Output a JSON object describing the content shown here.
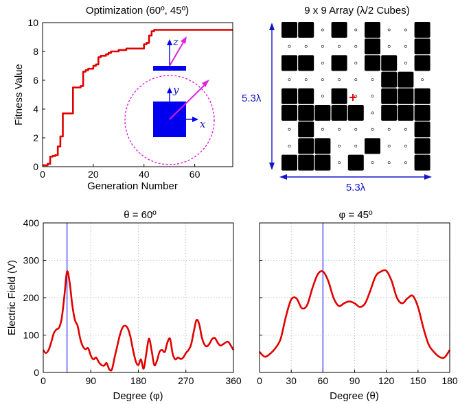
{
  "chart_data": [
    {
      "type": "line",
      "title": "Optimization (60º, 45º)",
      "xlabel": "Generation Number",
      "ylabel": "Fitness Value",
      "xlim": [
        0,
        75
      ],
      "ylim": [
        0,
        10
      ],
      "xticks": [
        "0",
        "20",
        "40",
        "60"
      ],
      "yticks": [
        "0",
        "2",
        "4",
        "6",
        "8",
        "10"
      ],
      "grid": false,
      "step_x": [
        0,
        2,
        3,
        4,
        5,
        6,
        7,
        8,
        10,
        12,
        13,
        15,
        16,
        17,
        18,
        20,
        21,
        22,
        23,
        25,
        26,
        27,
        29,
        30,
        33,
        34,
        40,
        41,
        42,
        43,
        44,
        75
      ],
      "step_y": [
        0.1,
        0.2,
        0.7,
        0.75,
        0.8,
        1.4,
        2.1,
        3.7,
        3.7,
        5.5,
        5.5,
        5.6,
        6.6,
        6.7,
        6.8,
        7.0,
        7.1,
        7.6,
        7.7,
        7.8,
        7.9,
        8.0,
        8.0,
        8.1,
        8.2,
        8.2,
        8.5,
        8.6,
        9.1,
        9.4,
        9.5,
        9.5
      ],
      "inset": {
        "axes": [
          "x",
          "y",
          "z"
        ]
      }
    },
    {
      "type": "heatmap",
      "title": "9 x 9 Array (λ/2 Cubes)",
      "width_label": "5.3λ",
      "height_label": "5.3λ",
      "grid": [
        [
          1,
          1,
          0,
          1,
          0,
          1,
          0,
          0,
          1
        ],
        [
          0,
          0,
          0,
          0,
          0,
          1,
          0,
          0,
          1
        ],
        [
          1,
          1,
          0,
          1,
          0,
          1,
          1,
          0,
          1
        ],
        [
          0,
          0,
          0,
          0,
          0,
          0,
          1,
          1,
          0
        ],
        [
          1,
          1,
          0,
          1,
          0,
          0,
          1,
          1,
          1
        ],
        [
          1,
          1,
          1,
          1,
          1,
          0,
          1,
          1,
          1
        ],
        [
          0,
          1,
          0,
          0,
          0,
          0,
          0,
          0,
          1
        ],
        [
          0,
          1,
          1,
          0,
          0,
          1,
          0,
          0,
          1
        ],
        [
          1,
          1,
          1,
          0,
          1,
          0,
          0,
          0,
          1
        ]
      ]
    },
    {
      "type": "line",
      "title": "θ = 60º",
      "xlabel": "Degree (φ)",
      "ylabel": "Electric Field (V)",
      "xlim": [
        0,
        360
      ],
      "ylim": [
        0,
        400
      ],
      "xticks": [
        "0",
        "90",
        "180",
        "270",
        "360"
      ],
      "yticks": [
        "0",
        "100",
        "200",
        "300",
        "400"
      ],
      "grid": true,
      "marker_x": 45,
      "x": [
        0,
        5,
        10,
        15,
        20,
        25,
        30,
        35,
        40,
        45,
        50,
        55,
        60,
        65,
        70,
        75,
        80,
        85,
        90,
        95,
        100,
        105,
        110,
        115,
        120,
        125,
        130,
        135,
        140,
        145,
        150,
        155,
        160,
        165,
        170,
        175,
        180,
        185,
        190,
        195,
        200,
        205,
        210,
        215,
        220,
        225,
        230,
        235,
        240,
        245,
        250,
        255,
        260,
        265,
        270,
        275,
        280,
        285,
        290,
        295,
        300,
        305,
        310,
        315,
        320,
        325,
        330,
        335,
        340,
        345,
        350,
        355,
        360
      ],
      "y": [
        60,
        52,
        60,
        80,
        105,
        115,
        120,
        145,
        205,
        270,
        240,
        180,
        140,
        125,
        90,
        70,
        62,
        65,
        45,
        35,
        40,
        28,
        20,
        18,
        25,
        8,
        8,
        40,
        70,
        100,
        120,
        125,
        118,
        95,
        60,
        30,
        20,
        35,
        10,
        50,
        90,
        60,
        20,
        30,
        55,
        60,
        55,
        80,
        90,
        50,
        35,
        40,
        36,
        40,
        52,
        60,
        75,
        110,
        140,
        130,
        95,
        75,
        70,
        78,
        90,
        92,
        80,
        72,
        75,
        80,
        82,
        72,
        60
      ]
    },
    {
      "type": "line",
      "title": "φ = 45º",
      "xlabel": "Degree (θ)",
      "ylabel": "",
      "xlim": [
        0,
        180
      ],
      "ylim": [
        0,
        400
      ],
      "xticks": [
        "0",
        "30",
        "60",
        "90",
        "120",
        "150",
        "180"
      ],
      "grid": true,
      "marker_x": 60,
      "x": [
        0,
        5,
        10,
        15,
        20,
        25,
        30,
        35,
        40,
        45,
        50,
        55,
        60,
        65,
        70,
        75,
        80,
        85,
        90,
        95,
        100,
        105,
        110,
        115,
        120,
        125,
        130,
        135,
        140,
        145,
        150,
        155,
        160,
        165,
        170,
        175,
        180
      ],
      "y": [
        55,
        42,
        50,
        65,
        90,
        150,
        195,
        198,
        172,
        180,
        225,
        262,
        270,
        245,
        200,
        178,
        185,
        190,
        185,
        175,
        185,
        220,
        258,
        270,
        272,
        245,
        200,
        185,
        198,
        205,
        175,
        120,
        75,
        55,
        42,
        40,
        60
      ]
    }
  ]
}
